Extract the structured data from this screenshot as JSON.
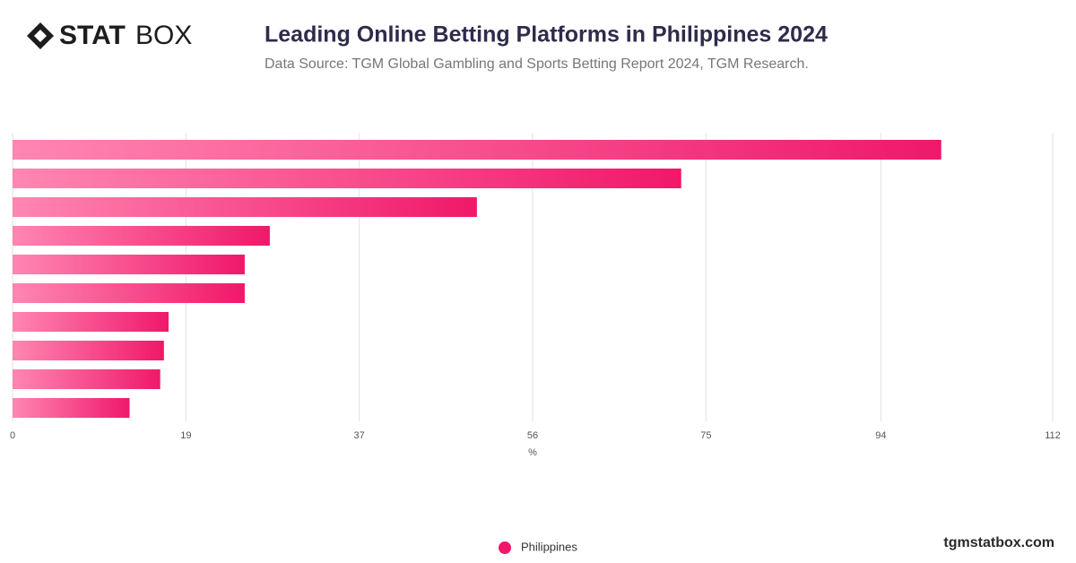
{
  "logo": {
    "bold": "STAT",
    "light": "BOX"
  },
  "website": "tgmstatbox.com",
  "chart_data": {
    "type": "hbar",
    "title": "Leading Online Betting Platforms in Philippines 2024",
    "subtitle": "Data Source: TGM Global Gambling and Sports Betting Report 2024, TGM Research.",
    "xlabel": "%",
    "categories": [
      null,
      null,
      null,
      null,
      null,
      null,
      null,
      null,
      null,
      null
    ],
    "series": [
      {
        "name": "Philippines",
        "color": "#f0186a",
        "values": [
          100,
          72,
          50,
          27.7,
          25,
          25,
          16.8,
          16.3,
          15.9,
          12.6
        ]
      }
    ],
    "xlim": [
      0,
      112
    ],
    "xticks": [
      0,
      {
        "value": 18.67,
        "label": "19"
      },
      {
        "value": 37.33,
        "label": "37"
      },
      56,
      {
        "value": 74.67,
        "label": "75"
      },
      {
        "value": 93.5,
        "label": "94"
      },
      112
    ],
    "grid": true,
    "legend": "bottom"
  }
}
